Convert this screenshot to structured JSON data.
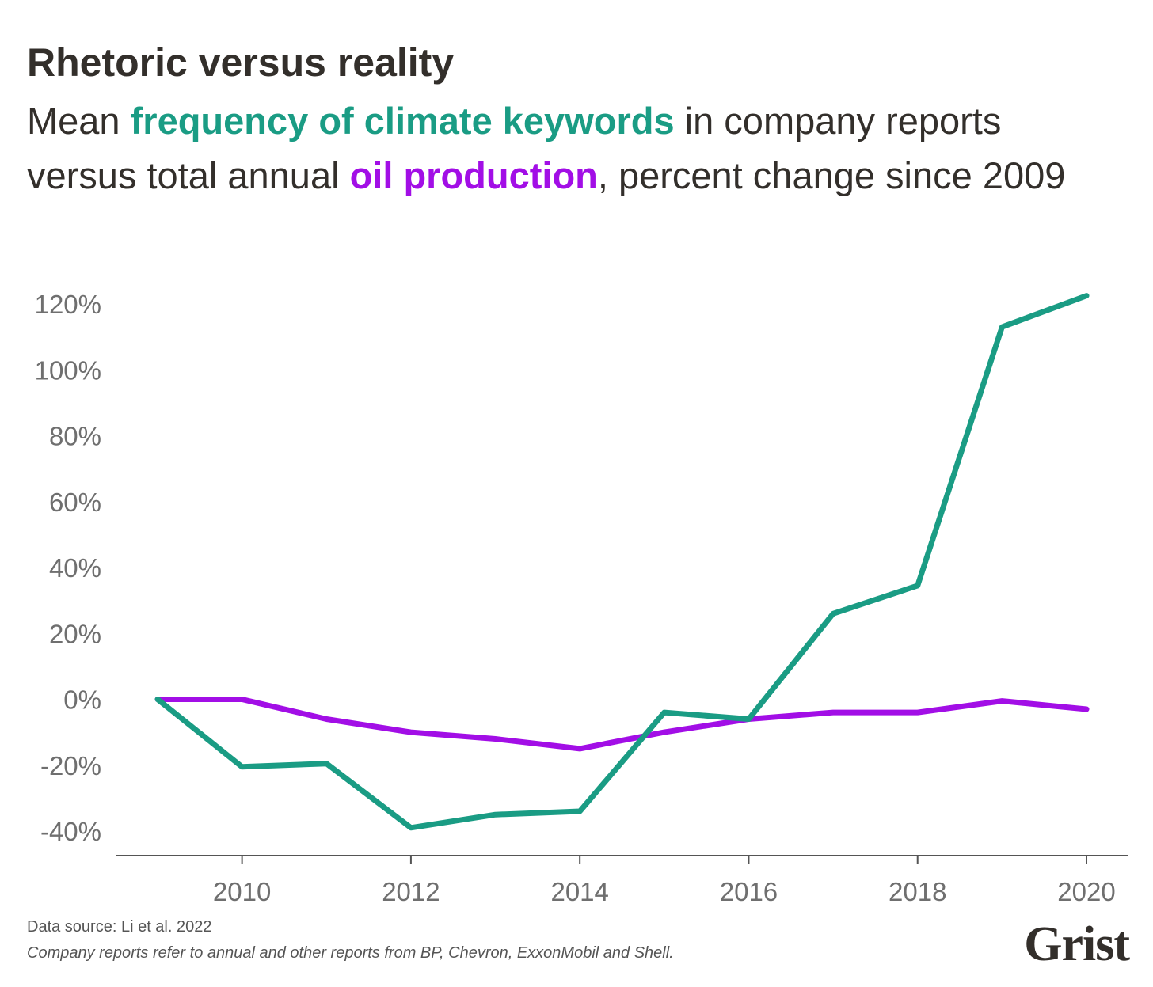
{
  "header": {
    "title": "Rhetoric versus reality",
    "subtitle_prefix": "Mean ",
    "subtitle_highlight_1": "frequency of climate keywords",
    "subtitle_middle": " in company reports versus total annual ",
    "subtitle_highlight_2": "oil production",
    "subtitle_suffix": ", percent change since 2009"
  },
  "footer": {
    "source": "Data source: Li et al. 2022",
    "note": "Company reports refer to annual and other reports from BP, Chevron, ExxonMobil and Shell.",
    "logo": "Grist"
  },
  "colors": {
    "keywords": "#1a9c84",
    "oil": "#a20ee6",
    "text": "#332f2b",
    "axis": "#555555"
  },
  "chart_data": {
    "type": "line",
    "title": "Rhetoric versus reality",
    "x": [
      2009,
      2010,
      2011,
      2012,
      2013,
      2014,
      2015,
      2016,
      2017,
      2018,
      2019,
      2020
    ],
    "series": [
      {
        "name": "frequency of climate keywords",
        "color": "#1a9c84",
        "values": [
          0,
          -20.5,
          -19.5,
          -39,
          -35,
          -34,
          -4,
          -6,
          26,
          34.5,
          113,
          122.5
        ]
      },
      {
        "name": "oil production",
        "color": "#a20ee6",
        "values": [
          0,
          0,
          -6,
          -10,
          -12,
          -15,
          -10,
          -6,
          -4,
          -4,
          -0.5,
          -3
        ]
      }
    ],
    "xticks": [
      2010,
      2012,
      2014,
      2016,
      2018,
      2020
    ],
    "xtick_labels": [
      "2010",
      "2012",
      "2014",
      "2016",
      "2018",
      "2020"
    ],
    "yticks": [
      -40,
      -20,
      0,
      20,
      40,
      60,
      80,
      100,
      120
    ],
    "ytick_labels": [
      "-40%",
      "-20%",
      "0%",
      "20%",
      "40%",
      "60%",
      "80%",
      "100%",
      "120%"
    ],
    "xlim": [
      2009,
      2020
    ],
    "ylim": [
      -40,
      120
    ],
    "grid": false,
    "legend": "none"
  }
}
